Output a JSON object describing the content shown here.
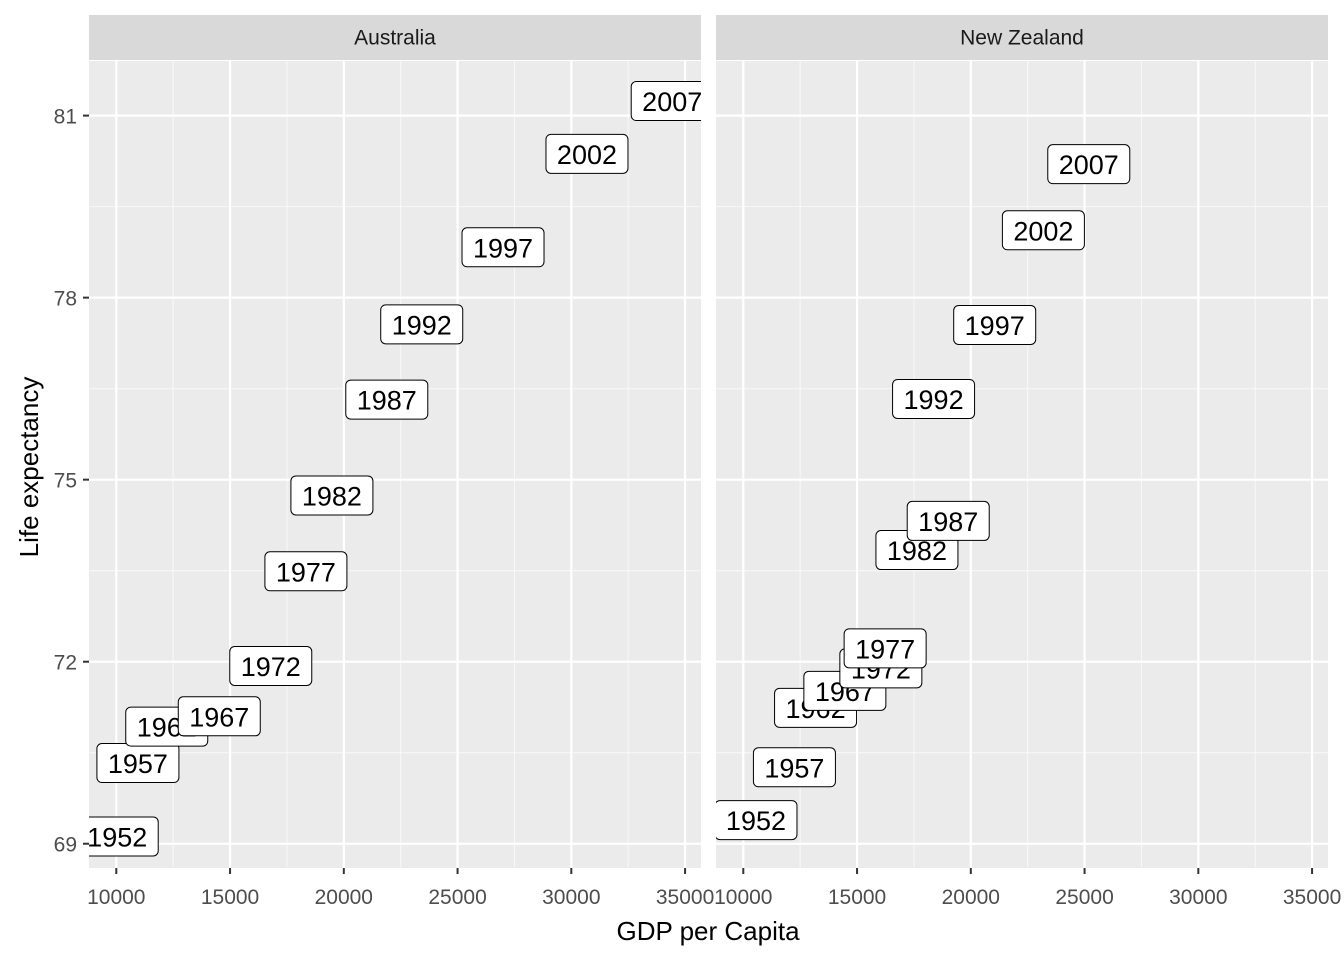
{
  "chart_data": {
    "type": "scatter",
    "geom": "label",
    "xlabel": "GDP per Capita",
    "ylabel": "Life expectancy",
    "xlim": [
      8800,
      35700
    ],
    "ylim": [
      68.6,
      81.9
    ],
    "x_ticks": [
      10000,
      15000,
      20000,
      25000,
      30000,
      35000
    ],
    "x_tick_labels": [
      "10000",
      "15000",
      "20000",
      "25000",
      "30000",
      "35000"
    ],
    "y_ticks": [
      69,
      72,
      75,
      78,
      81
    ],
    "y_tick_labels": [
      "69",
      "72",
      "75",
      "78",
      "81"
    ],
    "grid": true,
    "legend": "none",
    "colors": {
      "panel_bg": "#ebebeb",
      "strip_bg": "#d9d9d9",
      "grid_major": "#ffffff",
      "label_fill": "#ffffff",
      "label_border": "#000000"
    },
    "facets": [
      {
        "name": "Australia",
        "points": [
          {
            "year": "1952",
            "x": 10040,
            "y": 69.12
          },
          {
            "year": "1957",
            "x": 10950,
            "y": 70.33
          },
          {
            "year": "1962",
            "x": 12217,
            "y": 70.93
          },
          {
            "year": "1967",
            "x": 14526,
            "y": 71.1
          },
          {
            "year": "1972",
            "x": 16789,
            "y": 71.93
          },
          {
            "year": "1977",
            "x": 18334,
            "y": 73.49
          },
          {
            "year": "1982",
            "x": 19477,
            "y": 74.74
          },
          {
            "year": "1987",
            "x": 21889,
            "y": 76.32
          },
          {
            "year": "1992",
            "x": 23425,
            "y": 77.56
          },
          {
            "year": "1997",
            "x": 26998,
            "y": 78.83
          },
          {
            "year": "2002",
            "x": 30688,
            "y": 80.37
          },
          {
            "year": "2007",
            "x": 34435,
            "y": 81.24
          }
        ]
      },
      {
        "name": "New Zealand",
        "points": [
          {
            "year": "1952",
            "x": 10557,
            "y": 69.39
          },
          {
            "year": "1957",
            "x": 12247,
            "y": 70.26
          },
          {
            "year": "1962",
            "x": 13176,
            "y": 71.24
          },
          {
            "year": "1967",
            "x": 14464,
            "y": 71.52
          },
          {
            "year": "1972",
            "x": 16046,
            "y": 71.89
          },
          {
            "year": "1977",
            "x": 16234,
            "y": 72.22
          },
          {
            "year": "1982",
            "x": 17632,
            "y": 73.84
          },
          {
            "year": "1987",
            "x": 19007,
            "y": 74.32
          },
          {
            "year": "1992",
            "x": 18363,
            "y": 76.33
          },
          {
            "year": "1997",
            "x": 21050,
            "y": 77.55
          },
          {
            "year": "2002",
            "x": 23190,
            "y": 79.11
          },
          {
            "year": "2007",
            "x": 25185,
            "y": 80.2
          }
        ]
      }
    ]
  }
}
